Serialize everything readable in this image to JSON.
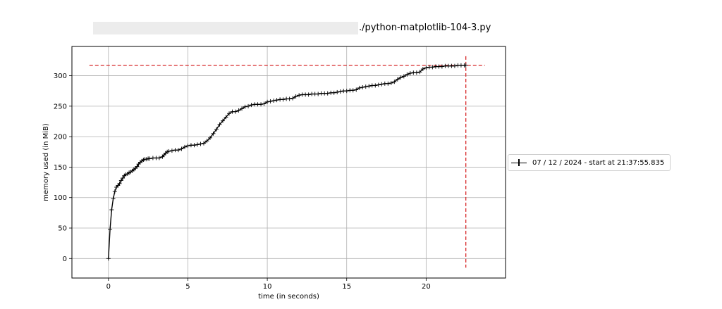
{
  "chart_data": {
    "type": "line",
    "title": "./python-matplotlib-104-3.py",
    "xlabel": "time (in seconds)",
    "ylabel": "memory used (in MiB)",
    "xlim": [
      -2.3,
      25.0
    ],
    "ylim": [
      -32,
      348
    ],
    "xticks": [
      0,
      5,
      10,
      15,
      20
    ],
    "yticks": [
      0,
      50,
      100,
      150,
      200,
      250,
      300
    ],
    "grid": true,
    "legend_position": "outside-right",
    "series": [
      {
        "name": "07 / 12 / 2024 - start at 21:37:55.835",
        "color": "#000000",
        "marker": "+",
        "points": [
          [
            0.0,
            0
          ],
          [
            0.1,
            48
          ],
          [
            0.2,
            80
          ],
          [
            0.3,
            98
          ],
          [
            0.4,
            110
          ],
          [
            0.5,
            117
          ],
          [
            0.6,
            120
          ],
          [
            0.7,
            123
          ],
          [
            0.8,
            128
          ],
          [
            0.9,
            132
          ],
          [
            1.0,
            136
          ],
          [
            1.1,
            138
          ],
          [
            1.2,
            139
          ],
          [
            1.3,
            141
          ],
          [
            1.4,
            142
          ],
          [
            1.5,
            144
          ],
          [
            1.6,
            146
          ],
          [
            1.7,
            148
          ],
          [
            1.8,
            151
          ],
          [
            1.9,
            155
          ],
          [
            2.0,
            158
          ],
          [
            2.1,
            160
          ],
          [
            2.2,
            162
          ],
          [
            2.3,
            163
          ],
          [
            2.4,
            163
          ],
          [
            2.5,
            164
          ],
          [
            2.6,
            164
          ],
          [
            2.8,
            165
          ],
          [
            3.0,
            165
          ],
          [
            3.2,
            165
          ],
          [
            3.4,
            167
          ],
          [
            3.5,
            170
          ],
          [
            3.6,
            173
          ],
          [
            3.7,
            175
          ],
          [
            3.8,
            176
          ],
          [
            4.0,
            177
          ],
          [
            4.2,
            178
          ],
          [
            4.4,
            178
          ],
          [
            4.6,
            180
          ],
          [
            4.8,
            183
          ],
          [
            5.0,
            185
          ],
          [
            5.2,
            186
          ],
          [
            5.4,
            186
          ],
          [
            5.6,
            187
          ],
          [
            5.8,
            188
          ],
          [
            6.0,
            189
          ],
          [
            6.2,
            193
          ],
          [
            6.4,
            198
          ],
          [
            6.6,
            205
          ],
          [
            6.8,
            212
          ],
          [
            7.0,
            220
          ],
          [
            7.2,
            226
          ],
          [
            7.4,
            232
          ],
          [
            7.6,
            238
          ],
          [
            7.8,
            241
          ],
          [
            8.0,
            241
          ],
          [
            8.2,
            243
          ],
          [
            8.4,
            246
          ],
          [
            8.6,
            249
          ],
          [
            8.8,
            250
          ],
          [
            9.0,
            252
          ],
          [
            9.2,
            253
          ],
          [
            9.4,
            253
          ],
          [
            9.6,
            253
          ],
          [
            9.8,
            254
          ],
          [
            10.0,
            257
          ],
          [
            10.2,
            258
          ],
          [
            10.4,
            259
          ],
          [
            10.6,
            260
          ],
          [
            10.8,
            261
          ],
          [
            11.0,
            261
          ],
          [
            11.2,
            262
          ],
          [
            11.4,
            262
          ],
          [
            11.6,
            263
          ],
          [
            11.8,
            266
          ],
          [
            12.0,
            268
          ],
          [
            12.2,
            269
          ],
          [
            12.4,
            269
          ],
          [
            12.6,
            269
          ],
          [
            12.8,
            270
          ],
          [
            13.0,
            270
          ],
          [
            13.2,
            270
          ],
          [
            13.4,
            271
          ],
          [
            13.6,
            271
          ],
          [
            13.8,
            271
          ],
          [
            14.0,
            272
          ],
          [
            14.2,
            272
          ],
          [
            14.4,
            273
          ],
          [
            14.6,
            274
          ],
          [
            14.8,
            275
          ],
          [
            15.0,
            275
          ],
          [
            15.2,
            276
          ],
          [
            15.4,
            276
          ],
          [
            15.6,
            277
          ],
          [
            15.8,
            280
          ],
          [
            16.0,
            281
          ],
          [
            16.2,
            282
          ],
          [
            16.4,
            283
          ],
          [
            16.6,
            284
          ],
          [
            16.8,
            284
          ],
          [
            17.0,
            285
          ],
          [
            17.2,
            286
          ],
          [
            17.4,
            287
          ],
          [
            17.6,
            287
          ],
          [
            17.8,
            288
          ],
          [
            18.0,
            290
          ],
          [
            18.2,
            294
          ],
          [
            18.4,
            297
          ],
          [
            18.6,
            299
          ],
          [
            18.8,
            302
          ],
          [
            19.0,
            304
          ],
          [
            19.2,
            305
          ],
          [
            19.4,
            305
          ],
          [
            19.6,
            306
          ],
          [
            19.8,
            311
          ],
          [
            20.0,
            313
          ],
          [
            20.2,
            314
          ],
          [
            20.4,
            314
          ],
          [
            20.6,
            315
          ],
          [
            20.8,
            315
          ],
          [
            21.0,
            315
          ],
          [
            21.2,
            316
          ],
          [
            21.4,
            316
          ],
          [
            21.6,
            316
          ],
          [
            21.8,
            316
          ],
          [
            22.0,
            317
          ],
          [
            22.2,
            317
          ],
          [
            22.4,
            317
          ],
          [
            22.5,
            317
          ]
        ]
      }
    ],
    "reference_lines": [
      {
        "orientation": "horizontal",
        "y": 317,
        "x_range": [
          -1.2,
          23.7
        ],
        "color": "#d62728",
        "style": "dashed"
      },
      {
        "orientation": "vertical",
        "x": 22.5,
        "y_range": [
          -15,
          332
        ],
        "color": "#d62728",
        "style": "dashed"
      }
    ]
  }
}
